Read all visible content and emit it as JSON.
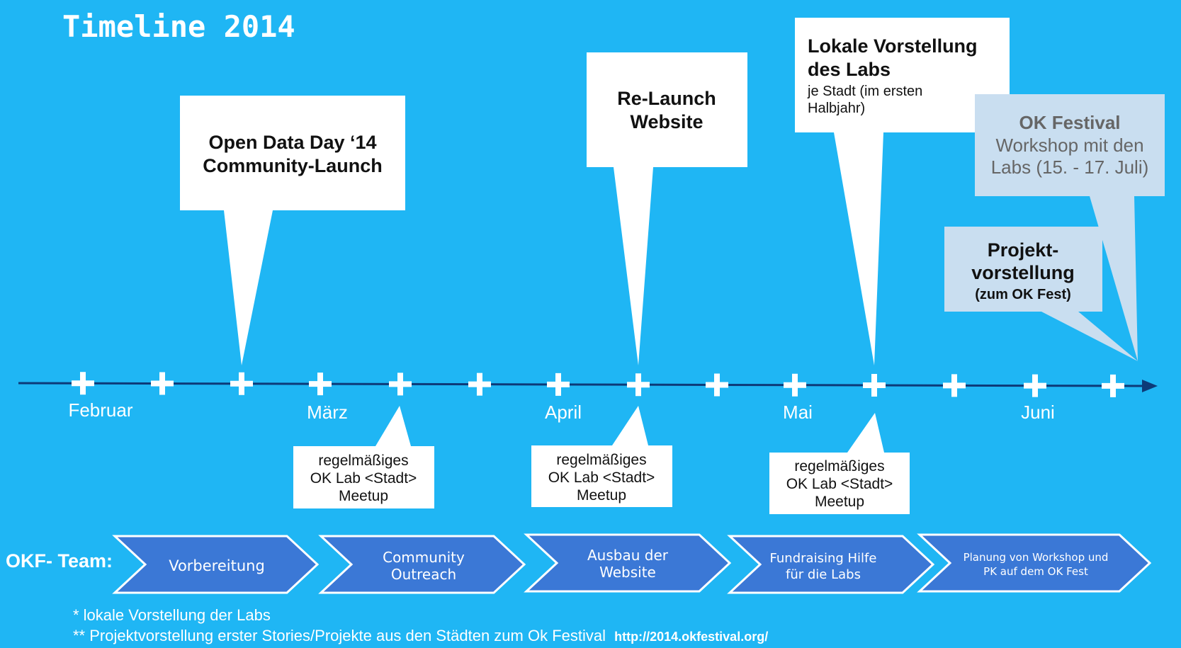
{
  "title": "Timeline 2014",
  "colors": {
    "background": "#1fb6f4",
    "callout": "#ffffff",
    "callout_light": "#c9def0",
    "chevron": "#3b78d6",
    "axis": "#0d3a78",
    "text_dark": "#111111",
    "text_muted": "#666666"
  },
  "months": [
    "Februar",
    "März",
    "April",
    "Mai",
    "Juni"
  ],
  "milestones": [
    {
      "title_lines": [
        "Open Data Day ‘14",
        "Community-Launch"
      ],
      "body_lines": []
    },
    {
      "title_lines": [
        "Re-Launch",
        "Website"
      ],
      "body_lines": []
    },
    {
      "title_lines": [
        "Lokale Vorstellung",
        "des Labs"
      ],
      "body_lines": [
        "je Stadt (im ersten",
        "Halbjahr)"
      ]
    },
    {
      "title_lines": [
        "OK Festival"
      ],
      "body_lines": [
        "Workshop mit den",
        "Labs (15. - 17. Juli)"
      ]
    },
    {
      "title_lines": [
        "Projekt-",
        "vorstellung"
      ],
      "body_lines": [
        "(zum OK Fest)"
      ]
    }
  ],
  "meetups": [
    {
      "lines": [
        "regelmäßiges",
        "OK Lab <Stadt>",
        "Meetup"
      ]
    },
    {
      "lines": [
        "regelmäßiges",
        "OK Lab <Stadt>",
        "Meetup"
      ]
    },
    {
      "lines": [
        "regelmäßiges",
        "OK Lab <Stadt>",
        "Meetup"
      ]
    }
  ],
  "team_label": "OKF- Team:",
  "phases": [
    {
      "lines": [
        "Vorbereitung"
      ]
    },
    {
      "lines": [
        "Community",
        "Outreach"
      ]
    },
    {
      "lines": [
        "Ausbau der",
        "Website"
      ]
    },
    {
      "lines": [
        "Fundraising Hilfe",
        "für die Labs"
      ]
    },
    {
      "lines": [
        "Planung von Workshop und",
        "PK auf dem OK Fest"
      ]
    }
  ],
  "footnotes": [
    {
      "text": "* lokale Vorstellung der Labs",
      "link": ""
    },
    {
      "text": "** Projektvorstellung erster Stories/Projekte aus den Städten zum Ok Festival",
      "link": "http://2014.okfestival.org/"
    }
  ]
}
